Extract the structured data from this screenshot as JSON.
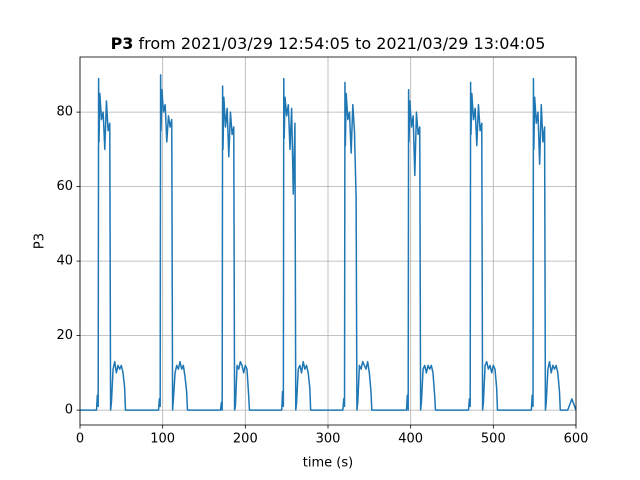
{
  "chart_data": {
    "type": "line",
    "title_bold": "P3",
    "title": "from 2021/03/29 12:54:05 to 2021/03/29 13:04:05",
    "x_label": "time (s)",
    "y_label": "P3",
    "xlim": [
      0,
      600
    ],
    "ylim": [
      -4,
      94.8
    ],
    "xticks": [
      0,
      100,
      200,
      300,
      400,
      500,
      600
    ],
    "yticks": [
      0,
      20,
      40,
      60,
      80
    ],
    "grid": true,
    "series": [
      {
        "color": "#1f77b4",
        "x": [
          0,
          18,
          20,
          21,
          22,
          22.5,
          23,
          24,
          26,
          28,
          30,
          32,
          34,
          36,
          37,
          38,
          40,
          42,
          44,
          46,
          48,
          50,
          52,
          54,
          55,
          57,
          95,
          96,
          97,
          97.5,
          98,
          99,
          101,
          103,
          105,
          107,
          109,
          111,
          112,
          113,
          115,
          117,
          119,
          121,
          123,
          125,
          127,
          129,
          130,
          132,
          170,
          171,
          172,
          172.5,
          173,
          174,
          176,
          178,
          180,
          182,
          184,
          186,
          187,
          188,
          190,
          192,
          194,
          196,
          198,
          200,
          202,
          204,
          205,
          207,
          244,
          245,
          246,
          246.5,
          247,
          248,
          250,
          252,
          254,
          256,
          258,
          260,
          261,
          262,
          264,
          266,
          268,
          270,
          272,
          274,
          276,
          278,
          279,
          281,
          318,
          319,
          320,
          320.5,
          321,
          322,
          324,
          326,
          328,
          330,
          332,
          334,
          335,
          336,
          338,
          340,
          342,
          344,
          346,
          348,
          350,
          352,
          353,
          355,
          395,
          396,
          397,
          397.5,
          398,
          399,
          401,
          403,
          405,
          407,
          409,
          411,
          412,
          413,
          415,
          417,
          419,
          421,
          423,
          425,
          427,
          429,
          430,
          432,
          470,
          471,
          472,
          472.5,
          473,
          474,
          476,
          478,
          480,
          482,
          484,
          486,
          487,
          488,
          490,
          492,
          494,
          496,
          498,
          500,
          502,
          504,
          505,
          507,
          546,
          547,
          548,
          548.5,
          549,
          550,
          552,
          554,
          556,
          558,
          560,
          562,
          563,
          564,
          566,
          568,
          570,
          572,
          574,
          576,
          578,
          580,
          581,
          583,
          590,
          595,
          600
        ],
        "values": [
          0,
          0,
          0,
          4,
          1,
          89,
          72,
          85,
          78,
          80,
          70,
          83,
          75,
          77,
          0,
          2,
          11,
          13,
          10,
          12,
          11,
          12,
          10,
          6,
          0,
          0,
          0,
          3,
          1,
          90,
          75,
          86,
          80,
          82,
          72,
          79,
          76,
          78,
          0,
          3,
          10,
          12,
          11,
          13,
          11,
          12,
          9,
          5,
          0,
          0,
          0,
          2,
          0,
          87,
          70,
          84,
          76,
          81,
          68,
          80,
          74,
          76,
          0,
          1,
          12,
          11,
          13,
          12,
          10,
          12,
          11,
          4,
          0,
          0,
          0,
          5,
          1,
          89,
          73,
          84,
          79,
          82,
          70,
          81,
          58,
          77,
          0,
          2,
          11,
          12,
          10,
          13,
          11,
          12,
          10,
          6,
          0,
          0,
          0,
          3,
          1,
          88,
          71,
          85,
          78,
          80,
          69,
          82,
          75,
          57,
          0,
          2,
          12,
          11,
          13,
          12,
          11,
          13,
          10,
          5,
          0,
          0,
          0,
          4,
          0,
          86,
          72,
          83,
          76,
          79,
          63,
          80,
          74,
          76,
          0,
          2,
          11,
          12,
          10,
          12,
          11,
          12,
          10,
          4,
          0,
          0,
          0,
          3,
          1,
          88,
          74,
          85,
          78,
          81,
          71,
          82,
          75,
          77,
          0,
          2,
          12,
          13,
          11,
          12,
          10,
          12,
          11,
          6,
          0,
          0,
          0,
          4,
          1,
          89,
          70,
          84,
          77,
          80,
          66,
          82,
          72,
          76,
          0,
          2,
          11,
          13,
          10,
          12,
          11,
          12,
          10,
          5,
          0,
          0,
          0,
          3,
          0
        ]
      }
    ]
  }
}
